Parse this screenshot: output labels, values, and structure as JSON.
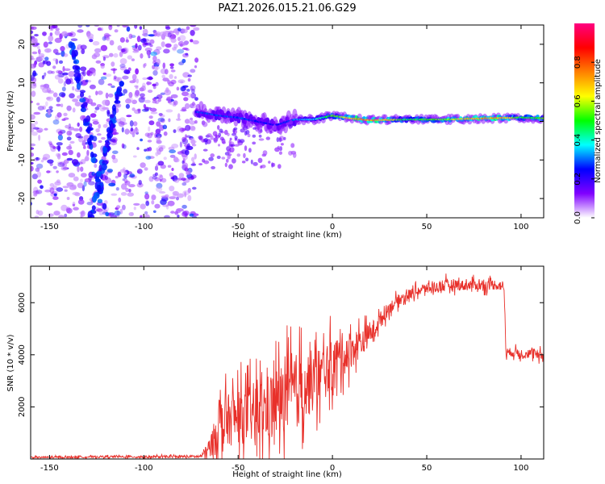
{
  "title": "PAZ1.2026.015.21.06.G29",
  "chart_data": [
    {
      "type": "heatmap",
      "name": "spectrogram",
      "xlabel": "Height of straight line (km)",
      "ylabel": "Frequency (Hz)",
      "xlim": [
        -160,
        112
      ],
      "ylim": [
        -25,
        25
      ],
      "xticks": [
        -150,
        -100,
        -50,
        0,
        50,
        100
      ],
      "yticks": [
        -20,
        -10,
        0,
        10,
        20
      ],
      "description_of_content": "Diffuse low-amplitude scatter (0.1-0.3) for heights below about -72 km across all frequencies with two slanted streaks; above -72 km energy concentrates in a narrow band near 0-2 Hz, peaking (about 0.8) around 10-30 km and 75-95 km.",
      "band_center_hz": [
        {
          "x": -72,
          "y": 2.5
        },
        {
          "x": -60,
          "y": 1.5
        },
        {
          "x": -50,
          "y": 1.0
        },
        {
          "x": -40,
          "y": 0.0
        },
        {
          "x": -30,
          "y": -1.0
        },
        {
          "x": -20,
          "y": 0.5
        },
        {
          "x": -10,
          "y": 0.5
        },
        {
          "x": 0,
          "y": 1.5
        },
        {
          "x": 10,
          "y": 0.8
        },
        {
          "x": 20,
          "y": 0.3
        },
        {
          "x": 40,
          "y": 0.5
        },
        {
          "x": 60,
          "y": 0.5
        },
        {
          "x": 80,
          "y": 0.8
        },
        {
          "x": 100,
          "y": 1.0
        },
        {
          "x": 112,
          "y": 0.8
        }
      ],
      "band_peak_amplitude": [
        {
          "x": -70,
          "y": 0.3
        },
        {
          "x": -50,
          "y": 0.3
        },
        {
          "x": -30,
          "y": 0.25
        },
        {
          "x": -10,
          "y": 0.4
        },
        {
          "x": 0,
          "y": 0.55
        },
        {
          "x": 15,
          "y": 0.8
        },
        {
          "x": 25,
          "y": 0.75
        },
        {
          "x": 40,
          "y": 0.5
        },
        {
          "x": 60,
          "y": 0.6
        },
        {
          "x": 80,
          "y": 0.8
        },
        {
          "x": 90,
          "y": 0.75
        },
        {
          "x": 100,
          "y": 0.5
        },
        {
          "x": 112,
          "y": 0.6
        }
      ],
      "colorbar": {
        "label": "Normalized spectral amplitude",
        "range": [
          0.0,
          1.0
        ],
        "ticks": [
          0.0,
          0.2,
          0.4,
          0.6,
          0.8
        ],
        "tick_labels": [
          "0.0",
          "0.2",
          "0.4",
          "0.6",
          "0.8"
        ],
        "colors": [
          "#ffffff",
          "#8000ff",
          "#0000ff",
          "#00ffff",
          "#00ff00",
          "#ffff00",
          "#ff8000",
          "#ff0000",
          "#ff0080"
        ]
      }
    },
    {
      "type": "line",
      "name": "snr",
      "xlabel": "Height of straight line (km)",
      "ylabel": "SNR (10 * v/v)",
      "xlim": [
        -160,
        112
      ],
      "ylim": [
        0,
        7400
      ],
      "xticks": [
        -150,
        -100,
        -50,
        0,
        50,
        100
      ],
      "yticks": [
        2000,
        4000,
        6000
      ],
      "line_color": "#e8302a",
      "series": [
        {
          "name": "SNR",
          "points": [
            [
              -160,
              60
            ],
            [
              -140,
              70
            ],
            [
              -120,
              90
            ],
            [
              -100,
              80
            ],
            [
              -80,
              90
            ],
            [
              -70,
              100
            ],
            [
              -65,
              400
            ],
            [
              -62,
              900
            ],
            [
              -60,
              1600
            ],
            [
              -58,
              1200
            ],
            [
              -55,
              1500
            ],
            [
              -50,
              1600
            ],
            [
              -45,
              1700
            ],
            [
              -40,
              1800
            ],
            [
              -35,
              1900
            ],
            [
              -30,
              2200
            ],
            [
              -25,
              2300
            ],
            [
              -20,
              2600
            ],
            [
              -15,
              2800
            ],
            [
              -10,
              3000
            ],
            [
              -5,
              3300
            ],
            [
              0,
              3600
            ],
            [
              5,
              4000
            ],
            [
              10,
              4200
            ],
            [
              15,
              4500
            ],
            [
              20,
              4800
            ],
            [
              25,
              5300
            ],
            [
              30,
              5800
            ],
            [
              35,
              6100
            ],
            [
              40,
              6300
            ],
            [
              45,
              6450
            ],
            [
              50,
              6550
            ],
            [
              55,
              6600
            ],
            [
              60,
              6650
            ],
            [
              65,
              6700
            ],
            [
              70,
              6650
            ],
            [
              75,
              6700
            ],
            [
              80,
              6650
            ],
            [
              85,
              6700
            ],
            [
              90,
              6650
            ],
            [
              91,
              6600
            ],
            [
              92,
              4100
            ],
            [
              95,
              4100
            ],
            [
              100,
              4050
            ],
            [
              105,
              4050
            ],
            [
              110,
              3950
            ],
            [
              112,
              4000
            ]
          ],
          "noise_amplitude": [
            [
              -160,
              40
            ],
            [
              -70,
              60
            ],
            [
              -65,
              500
            ],
            [
              -60,
              1200
            ],
            [
              -50,
              1300
            ],
            [
              -40,
              1500
            ],
            [
              -30,
              1700
            ],
            [
              -20,
              1800
            ],
            [
              -10,
              1500
            ],
            [
              0,
              1200
            ],
            [
              10,
              900
            ],
            [
              20,
              500
            ],
            [
              30,
              300
            ],
            [
              40,
              250
            ],
            [
              50,
              250
            ],
            [
              60,
              300
            ],
            [
              70,
              250
            ],
            [
              80,
              250
            ],
            [
              90,
              250
            ],
            [
              92,
              200
            ],
            [
              112,
              250
            ]
          ]
        }
      ]
    }
  ]
}
